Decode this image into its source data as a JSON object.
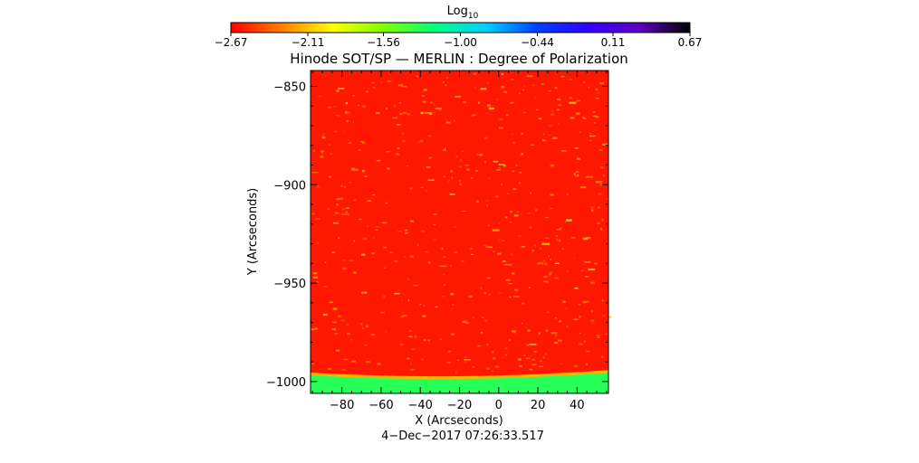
{
  "chart_data": {
    "type": "heatmap",
    "title": "Hinode SOT/SP — MERLIN : Degree of Polarization",
    "xlabel": "X (Arcseconds)",
    "ylabel": "Y (Arcseconds)",
    "xlim": [
      -96,
      56
    ],
    "ylim": [
      -1006,
      -842
    ],
    "x_ticks": [
      -80,
      -60,
      -40,
      -20,
      0,
      20,
      40
    ],
    "x_tick_labels": [
      "−80",
      "−60",
      "−40",
      "−20",
      "0",
      "20",
      "40"
    ],
    "y_ticks": [
      -850,
      -900,
      -950,
      -1000
    ],
    "y_tick_labels": [
      "−850",
      "−900",
      "−950",
      "−1000"
    ],
    "colorbar": {
      "label": "Log",
      "label_subscript": "10",
      "range": [
        -2.67,
        0.67
      ],
      "ticks": [
        -2.67,
        -2.11,
        -1.56,
        -1.0,
        -0.44,
        0.11,
        0.67
      ],
      "tick_labels": [
        "−2.67",
        "−2.11",
        "−1.56",
        "−1.00",
        "−0.44",
        "0.11",
        "0.67"
      ],
      "colormap": [
        "#ff0000",
        "#ff8000",
        "#ffff00",
        "#80ff00",
        "#00ff80",
        "#00d0ff",
        "#0040ff",
        "#3000ff",
        "#6000c0",
        "#000000"
      ]
    },
    "field": {
      "disk_value": -2.6,
      "limb_value": -2.15,
      "offlimb_value": -1.3,
      "limb_center_x": -30,
      "limb_apex_y": -998,
      "limb_curvature": 0.00043,
      "speckle_value": -2.2,
      "bright_spot_value": -2.0
    },
    "timestamp": "4−Dec−2017 07:26:33.517"
  }
}
